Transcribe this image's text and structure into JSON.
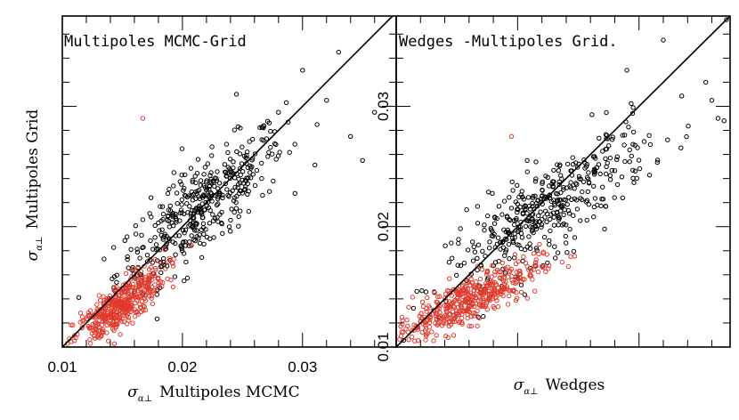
{
  "chart_data": [
    {
      "type": "scatter",
      "title": "Multipoles MCMC-Grid",
      "xlabel_symbol": "σ",
      "xlabel_subscript": "α⊥",
      "xlabel_text": "Multipoles MCMC",
      "ylabel_symbol": "σ",
      "ylabel_subscript": "α⊥",
      "ylabel_text": "Multipoles Grid",
      "xlim": [
        0.01,
        0.0378
      ],
      "ylim": [
        0.01,
        0.0375
      ],
      "xticks": [
        0.01,
        0.02,
        0.03
      ],
      "xtick_labels": [
        "0.01",
        "0.02",
        "0.03"
      ],
      "yticks": [],
      "ytick_labels": [],
      "reference_line": "y = x",
      "series": [
        {
          "name": "black",
          "color": "#000000",
          "center": [
            0.0215,
            0.0215
          ],
          "spread": [
            0.0035,
            0.0033
          ],
          "count": 430,
          "extra_points": [
            [
              0.0245,
              0.031
            ],
            [
              0.028,
              0.0295
            ],
            [
              0.033,
              0.0345
            ],
            [
              0.036,
              0.0295
            ],
            [
              0.035,
              0.0255
            ],
            [
              0.034,
              0.0275
            ],
            [
              0.03,
              0.033
            ],
            [
              0.032,
              0.0305
            ]
          ]
        },
        {
          "name": "red",
          "color": "#e03a2c",
          "center": [
            0.0147,
            0.0133
          ],
          "spread": [
            0.0019,
            0.0017
          ],
          "count": 460,
          "extra_points": [
            [
              0.0167,
              0.029
            ]
          ]
        }
      ]
    },
    {
      "type": "scatter",
      "title": "Wedges -Multipoles Grid.",
      "xlabel_symbol": "σ",
      "xlabel_subscript": "α⊥",
      "xlabel_text": "Wedges",
      "ylabel_symbol": "",
      "ylabel_subscript": "",
      "ylabel_text": "",
      "xlim": [
        0.01,
        0.0375
      ],
      "ylim": [
        0.01,
        0.0375
      ],
      "xticks": [],
      "xtick_labels": [],
      "yticks": [
        0.01,
        0.02,
        0.03
      ],
      "ytick_labels": [
        "0.01",
        "0.02",
        "0.03"
      ],
      "reference_line": "y = x",
      "series": [
        {
          "name": "black",
          "color": "#000000",
          "center": [
            0.0225,
            0.0215
          ],
          "spread": [
            0.0042,
            0.0033
          ],
          "count": 430,
          "extra_points": [
            [
              0.029,
              0.033
            ],
            [
              0.032,
              0.0355
            ],
            [
              0.036,
              0.0305
            ],
            [
              0.0365,
              0.029
            ],
            [
              0.037,
              0.0288
            ],
            [
              0.0355,
              0.032
            ],
            [
              0.0372,
              0.0372
            ]
          ]
        },
        {
          "name": "red",
          "color": "#e03a2c",
          "center": [
            0.0158,
            0.0138
          ],
          "spread": [
            0.003,
            0.0017
          ],
          "count": 460,
          "extra_points": [
            [
              0.0195,
              0.0275
            ]
          ]
        }
      ]
    }
  ]
}
